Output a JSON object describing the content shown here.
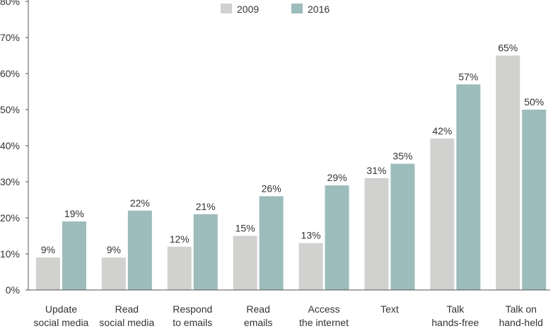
{
  "chart_data": {
    "type": "bar",
    "categories": [
      [
        "Update",
        "social media"
      ],
      [
        "Read",
        "social media"
      ],
      [
        "Respond",
        "to emails"
      ],
      [
        "Read",
        "emails"
      ],
      [
        "Access",
        "the internet"
      ],
      [
        "Text"
      ],
      [
        "Talk",
        "hands-free"
      ],
      [
        "Talk on",
        "hand-held"
      ]
    ],
    "series": [
      {
        "name": "2009",
        "color": "#d1d1cf",
        "values": [
          9,
          9,
          12,
          15,
          13,
          31,
          42,
          65
        ],
        "labels": [
          "9%",
          "9%",
          "12%",
          "15%",
          "13%",
          "31%",
          "42%",
          "65%"
        ]
      },
      {
        "name": "2016",
        "color": "#9dbcbc",
        "values": [
          19,
          22,
          21,
          26,
          29,
          35,
          57,
          50
        ],
        "labels": [
          "19%",
          "22%",
          "21%",
          "26%",
          "29%",
          "35%",
          "57%",
          "50%"
        ]
      }
    ],
    "yticks": [
      0,
      10,
      20,
      30,
      40,
      50,
      60,
      70,
      80
    ],
    "ytick_labels": [
      "0%",
      "10%",
      "20%",
      "30%",
      "40%",
      "50%",
      "60%",
      "70%",
      "80%"
    ],
    "ylim": [
      0,
      80
    ],
    "grid": false,
    "legend": "top-center"
  }
}
